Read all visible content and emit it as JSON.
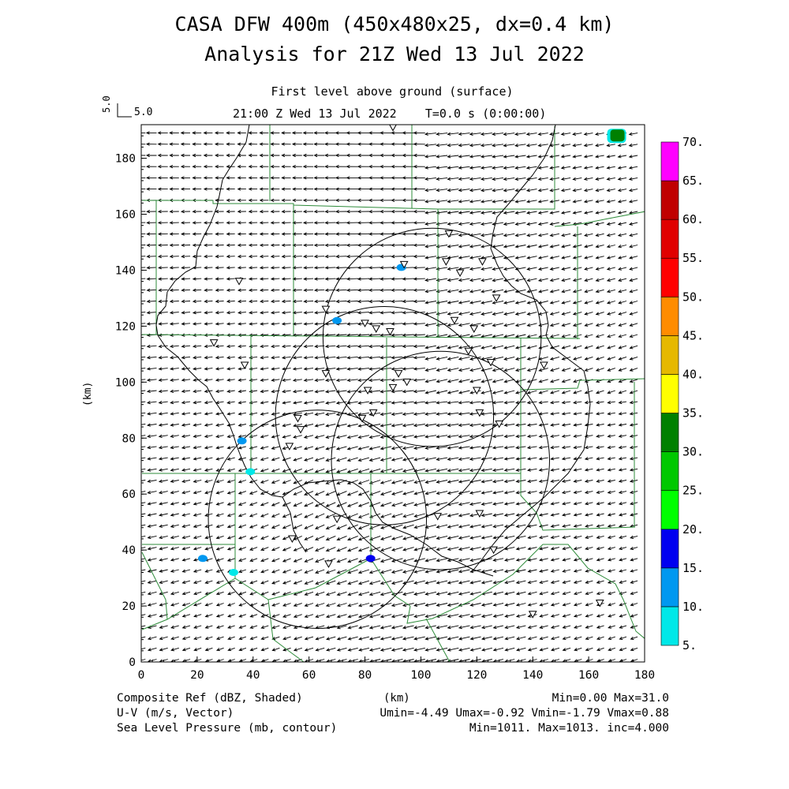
{
  "header": {
    "title_line1": "CASA DFW 400m (450x480x25, dx=0.4 km)",
    "title_line2": "Analysis for 21Z Wed 13 Jul 2022",
    "subtitle": "First level above ground (surface)",
    "time_line": "21:00 Z Wed 13 Jul 2022    T=0.0 s (0:00:00)",
    "vector_scale_label": "5.0",
    "vector_scale_label_rotated": "5.0"
  },
  "axes": {
    "x_label": "(km)",
    "y_label": "(km)",
    "x_range": [
      0,
      180
    ],
    "y_range": [
      0,
      192
    ],
    "x_ticks": [
      "0",
      "20",
      "40",
      "60",
      "80",
      "100",
      "120",
      "140",
      "160",
      "180"
    ],
    "y_ticks": [
      "0",
      "20",
      "40",
      "60",
      "80",
      "100",
      "120",
      "140",
      "160",
      "180"
    ]
  },
  "colorbar": {
    "levels": [
      "5.",
      "10.",
      "15.",
      "20.",
      "25.",
      "30.",
      "35.",
      "40.",
      "45.",
      "50.",
      "55.",
      "60.",
      "65.",
      "70."
    ],
    "colors": [
      "#00e8e8",
      "#0098f0",
      "#0000f0",
      "#00ff00",
      "#00c800",
      "#008000",
      "#ffff00",
      "#e6b800",
      "#ff8c00",
      "#ff0000",
      "#e00000",
      "#c00000",
      "#ff00ff"
    ]
  },
  "footer": {
    "left1": "Composite Ref (dBZ, Shaded)",
    "left2": "U-V (m/s, Vector)",
    "left3": "Sea Level Pressure (mb, contour)",
    "center": "(km)",
    "right1": "Min=0.00 Max=31.0",
    "right2": "Umin=-4.49 Umax=-0.92 Vmin=-1.79 Vmax=0.88",
    "right3": "Min=1011. Max=1013. inc=4.000"
  },
  "map_data": {
    "radar_rings": [
      {
        "cx": 104,
        "cy": 116,
        "r": 39
      },
      {
        "cx": 87,
        "cy": 88,
        "r": 39
      },
      {
        "cx": 107,
        "cy": 72,
        "r": 39
      },
      {
        "cx": 63,
        "cy": 51,
        "r": 39
      }
    ],
    "stations": [
      [
        90,
        191
      ],
      [
        110,
        153
      ],
      [
        94,
        142
      ],
      [
        109,
        143
      ],
      [
        114,
        139
      ],
      [
        122,
        143
      ],
      [
        127,
        130
      ],
      [
        66,
        126
      ],
      [
        80,
        121
      ],
      [
        84,
        119
      ],
      [
        89,
        118
      ],
      [
        112,
        122
      ],
      [
        119,
        119
      ],
      [
        35,
        136
      ],
      [
        26,
        114
      ],
      [
        37,
        106
      ],
      [
        66,
        103
      ],
      [
        92,
        103
      ],
      [
        81,
        97
      ],
      [
        90,
        98
      ],
      [
        95,
        100
      ],
      [
        120,
        97
      ],
      [
        117,
        111
      ],
      [
        125,
        107
      ],
      [
        144,
        106
      ],
      [
        79,
        87
      ],
      [
        83,
        89
      ],
      [
        56,
        87
      ],
      [
        57,
        83
      ],
      [
        53,
        77
      ],
      [
        121,
        89
      ],
      [
        128,
        85
      ],
      [
        70,
        51
      ],
      [
        106,
        52
      ],
      [
        121,
        53
      ],
      [
        54,
        44
      ],
      [
        67,
        35
      ],
      [
        126,
        40
      ],
      [
        140,
        17
      ],
      [
        164,
        21
      ]
    ],
    "echoes": [
      {
        "x": 170,
        "y": 188,
        "dbz": 31
      },
      {
        "x": 93,
        "y": 141,
        "dbz": 12
      },
      {
        "x": 70,
        "y": 122,
        "dbz": 10
      },
      {
        "x": 36,
        "y": 79,
        "dbz": 14
      },
      {
        "x": 82,
        "y": 37,
        "dbz": 15
      },
      {
        "x": 22,
        "y": 37,
        "dbz": 12
      },
      {
        "x": 39,
        "y": 68,
        "dbz": 8
      },
      {
        "x": 33,
        "y": 32,
        "dbz": 8
      }
    ]
  }
}
